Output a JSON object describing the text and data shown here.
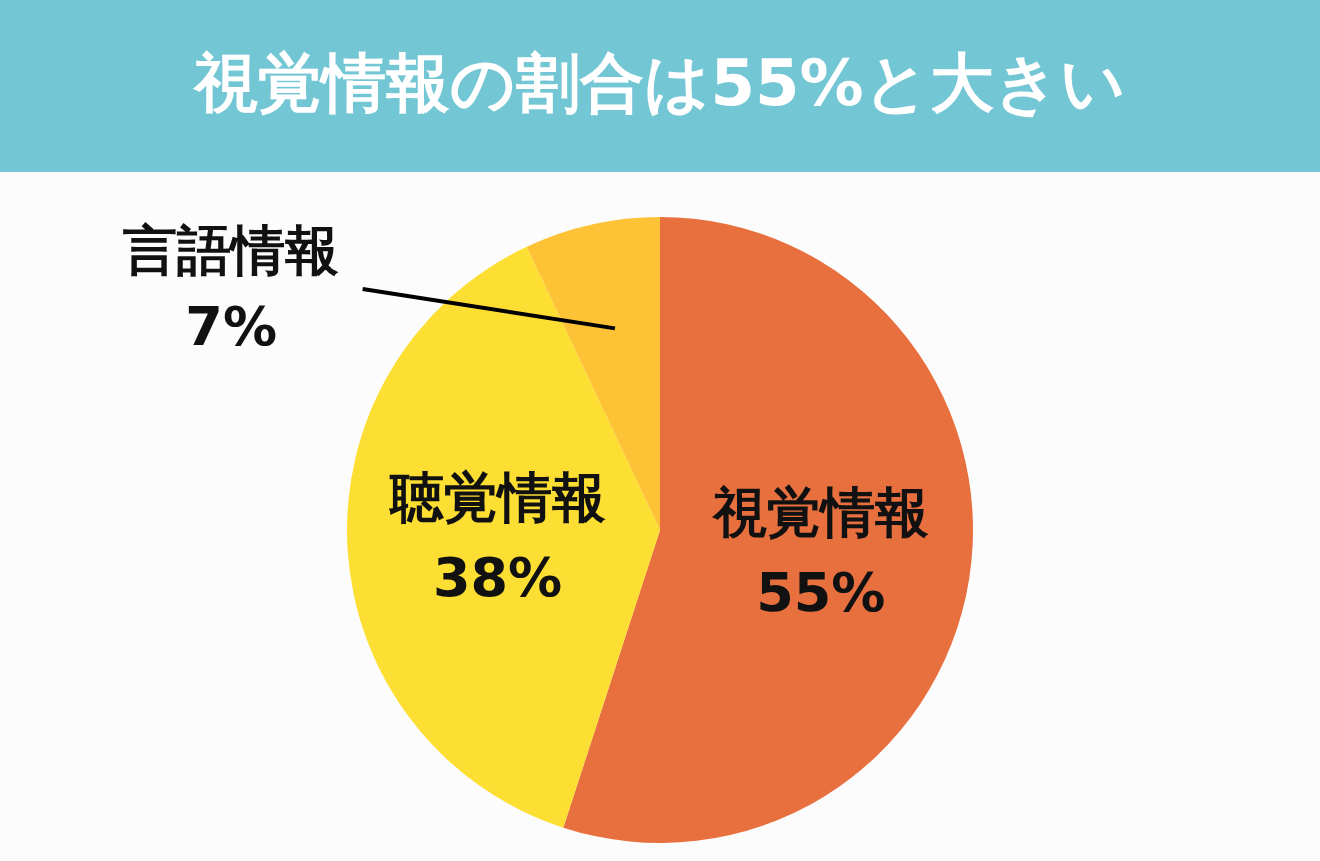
{
  "chart_data": {
    "type": "pie",
    "title": "視覚情報の割合は55%と大きい",
    "categories": [
      "視覚情報",
      "聴覚情報",
      "言語情報"
    ],
    "values": [
      55,
      38,
      7
    ],
    "colors": [
      "#e8703e",
      "#fddf33",
      "#fdc235"
    ],
    "value_labels": [
      "55%",
      "38%",
      "7%"
    ]
  }
}
